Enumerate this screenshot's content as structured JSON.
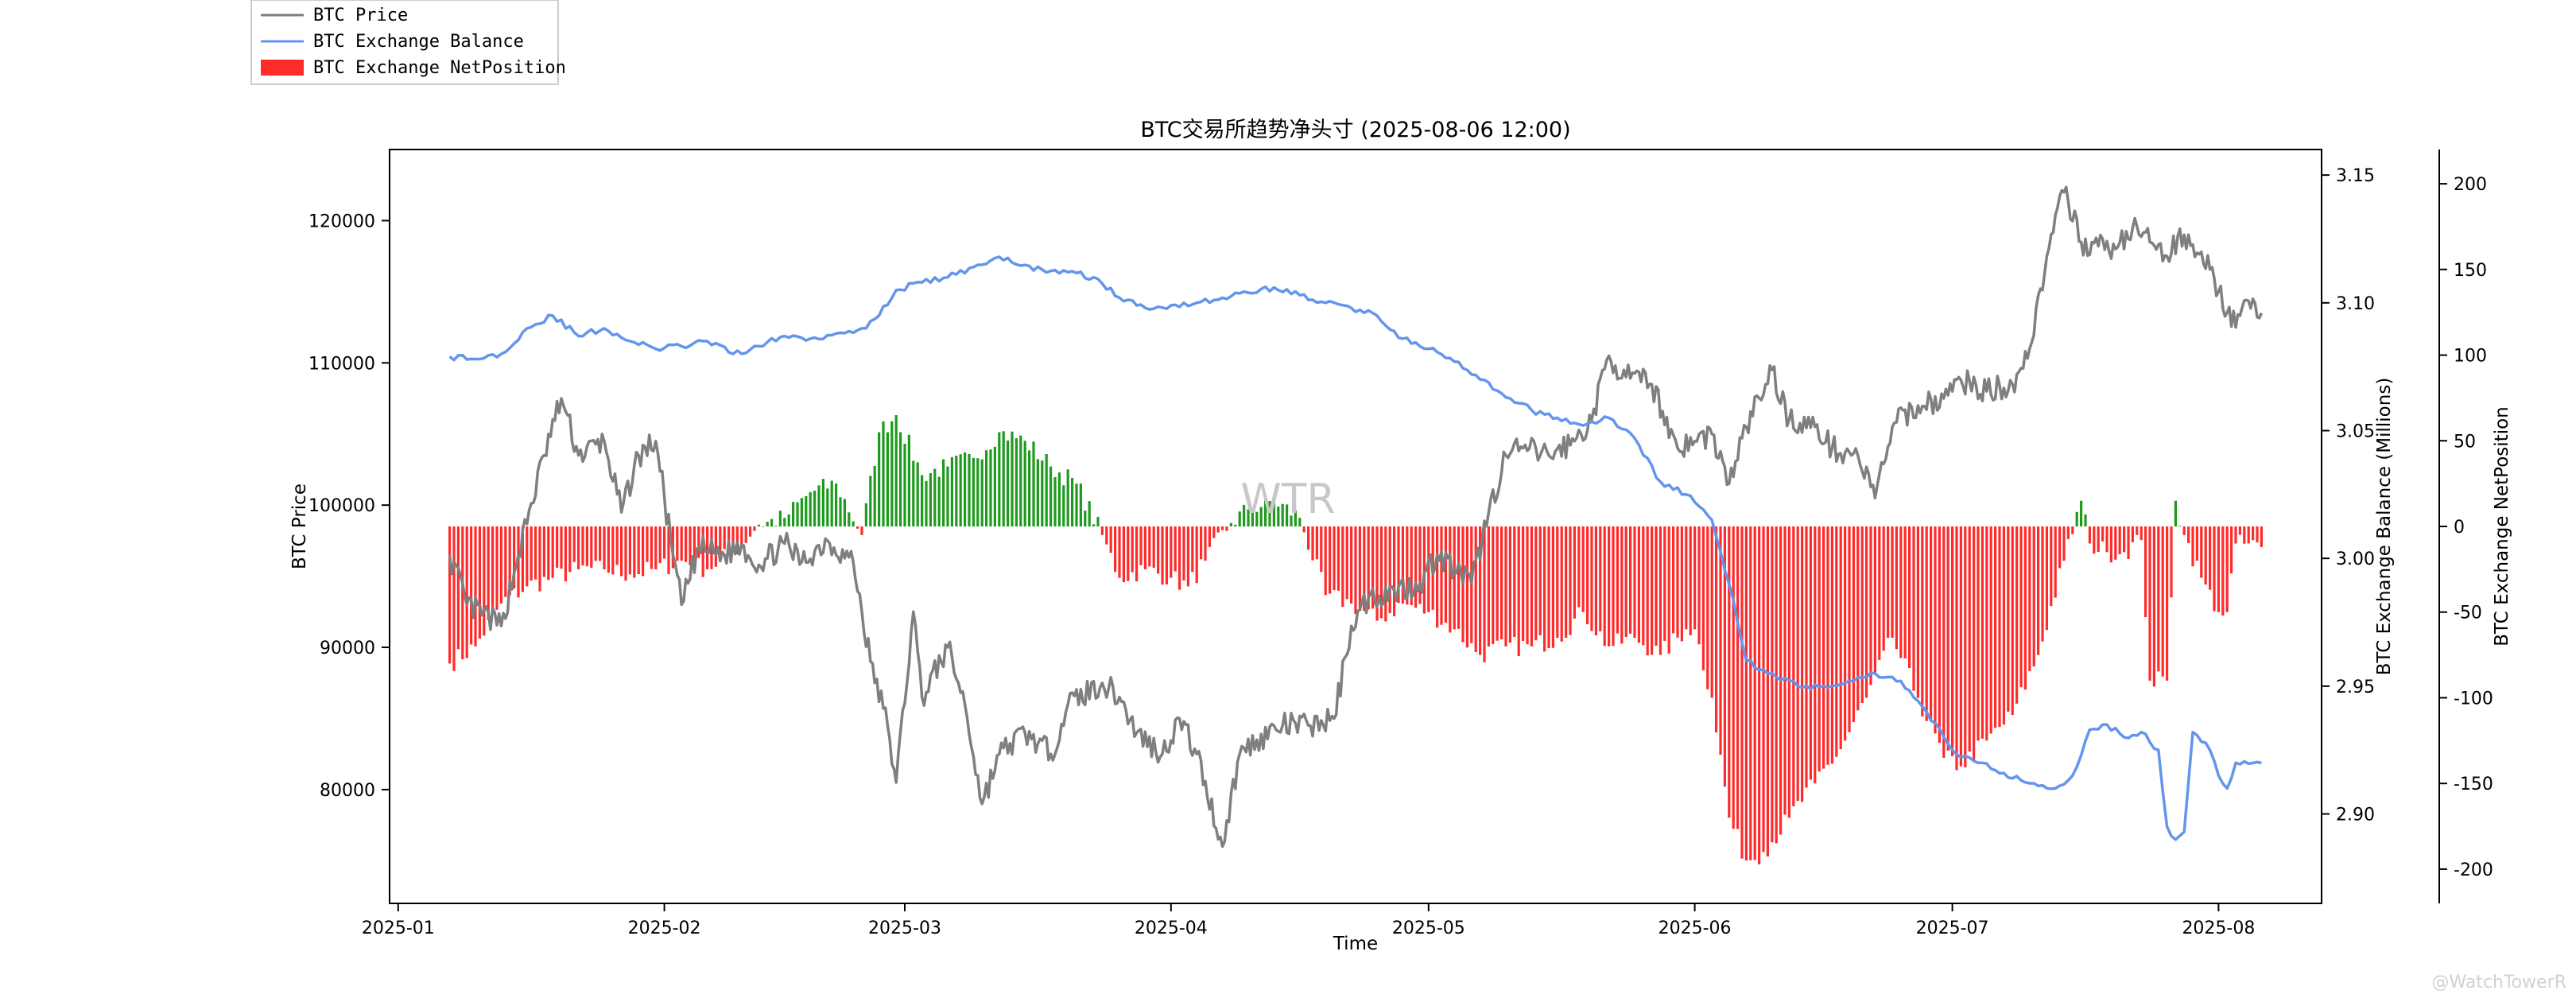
{
  "chart_data": {
    "type": "line",
    "title": "BTC交易所趋势净头寸 (2025-08-06 12:00)",
    "xlabel": "Time",
    "x_ticks": [
      "2025-01",
      "2025-02",
      "2025-03",
      "2025-04",
      "2025-05",
      "2025-06",
      "2025-07",
      "2025-08"
    ],
    "x_range": [
      "2024-12-31",
      "2025-08-13"
    ],
    "axes": {
      "price": {
        "label": "BTC Price",
        "side": "left",
        "range": [
          72000,
          125000
        ],
        "ticks": [
          80000,
          90000,
          100000,
          110000,
          120000
        ]
      },
      "balance": {
        "label": "BTC Exchange Balance (Millions)",
        "side": "right",
        "range": [
          2.865,
          3.16
        ],
        "ticks": [
          "2.90",
          "2.95",
          "3.00",
          "3.05",
          "3.10",
          "3.15"
        ]
      },
      "netposition": {
        "label": "BTC Exchange NetPosition",
        "side": "right-outer",
        "range": [
          -220,
          220
        ],
        "ticks": [
          -200,
          -150,
          -100,
          -50,
          0,
          50,
          100,
          150,
          200
        ]
      }
    },
    "legend": {
      "placement": "top-left",
      "entries": [
        {
          "name": "BTC Price",
          "kind": "line",
          "color": "#7f7f7f"
        },
        {
          "name": "BTC Exchange Balance",
          "kind": "line",
          "color": "#6495ed"
        },
        {
          "name": "BTC Exchange NetPosition",
          "kind": "bar",
          "color": "#ff2a2a"
        }
      ]
    },
    "colors": {
      "price": "#7f7f7f",
      "balance": "#6495ed",
      "positive": "#1e9a1e",
      "negative": "#ff2a2a"
    },
    "series": [
      {
        "name": "BTC Price",
        "axis": "price",
        "points": [
          [
            "2025-01-07",
            96500
          ],
          [
            "2025-01-09",
            93000
          ],
          [
            "2025-01-13",
            91500
          ],
          [
            "2025-01-15",
            96500
          ],
          [
            "2025-01-18",
            103500
          ],
          [
            "2025-01-20",
            107500
          ],
          [
            "2025-01-22",
            103500
          ],
          [
            "2025-01-25",
            104500
          ],
          [
            "2025-01-27",
            99500
          ],
          [
            "2025-01-29",
            103500
          ],
          [
            "2025-01-31",
            104500
          ],
          [
            "2025-02-02",
            96500
          ],
          [
            "2025-02-03",
            93000
          ],
          [
            "2025-02-05",
            97000
          ],
          [
            "2025-02-08",
            96500
          ],
          [
            "2025-02-10",
            97200
          ],
          [
            "2025-02-12",
            95800
          ],
          [
            "2025-02-15",
            97300
          ],
          [
            "2025-02-17",
            96000
          ],
          [
            "2025-02-20",
            97500
          ],
          [
            "2025-02-23",
            96000
          ],
          [
            "2025-02-25",
            89000
          ],
          [
            "2025-02-27",
            84500
          ],
          [
            "2025-02-28",
            80500
          ],
          [
            "2025-03-02",
            92500
          ],
          [
            "2025-03-03",
            86500
          ],
          [
            "2025-03-06",
            90000
          ],
          [
            "2025-03-08",
            86000
          ],
          [
            "2025-03-10",
            79000
          ],
          [
            "2025-03-12",
            82500
          ],
          [
            "2025-03-15",
            84000
          ],
          [
            "2025-03-18",
            82500
          ],
          [
            "2025-03-20",
            86000
          ],
          [
            "2025-03-24",
            87500
          ],
          [
            "2025-03-26",
            86500
          ],
          [
            "2025-03-28",
            84000
          ],
          [
            "2025-03-31",
            82500
          ],
          [
            "2025-04-02",
            85000
          ],
          [
            "2025-04-04",
            82500
          ],
          [
            "2025-04-07",
            76000
          ],
          [
            "2025-04-09",
            82500
          ],
          [
            "2025-04-11",
            83500
          ],
          [
            "2025-04-14",
            84500
          ],
          [
            "2025-04-17",
            84500
          ],
          [
            "2025-04-20",
            85000
          ],
          [
            "2025-04-22",
            91500
          ],
          [
            "2025-04-24",
            93500
          ],
          [
            "2025-04-27",
            94000
          ],
          [
            "2025-04-30",
            94500
          ],
          [
            "2025-05-02",
            96500
          ],
          [
            "2025-05-04",
            95500
          ],
          [
            "2025-05-06",
            94500
          ],
          [
            "2025-05-08",
            99500
          ],
          [
            "2025-05-10",
            103500
          ],
          [
            "2025-05-12",
            104000
          ],
          [
            "2025-05-15",
            103500
          ],
          [
            "2025-05-18",
            104500
          ],
          [
            "2025-05-20",
            106000
          ],
          [
            "2025-05-22",
            110500
          ],
          [
            "2025-05-24",
            109000
          ],
          [
            "2025-05-27",
            108500
          ],
          [
            "2025-05-30",
            104000
          ],
          [
            "2025-06-01",
            104500
          ],
          [
            "2025-06-03",
            105000
          ],
          [
            "2025-06-05",
            101500
          ],
          [
            "2025-06-07",
            105500
          ],
          [
            "2025-06-10",
            109500
          ],
          [
            "2025-06-12",
            106000
          ],
          [
            "2025-06-15",
            105500
          ],
          [
            "2025-06-17",
            104000
          ],
          [
            "2025-06-20",
            103500
          ],
          [
            "2025-06-22",
            100500
          ],
          [
            "2025-06-24",
            105500
          ],
          [
            "2025-06-27",
            107000
          ],
          [
            "2025-06-30",
            107500
          ],
          [
            "2025-07-02",
            108800
          ],
          [
            "2025-07-05",
            108000
          ],
          [
            "2025-07-08",
            108500
          ],
          [
            "2025-07-10",
            111000
          ],
          [
            "2025-07-12",
            117500
          ],
          [
            "2025-07-14",
            122000
          ],
          [
            "2025-07-16",
            118500
          ],
          [
            "2025-07-18",
            118200
          ],
          [
            "2025-07-20",
            118000
          ],
          [
            "2025-07-22",
            119500
          ],
          [
            "2025-07-24",
            118500
          ],
          [
            "2025-07-26",
            117500
          ],
          [
            "2025-07-28",
            119000
          ],
          [
            "2025-07-30",
            117800
          ],
          [
            "2025-08-01",
            115000
          ],
          [
            "2025-08-03",
            112500
          ],
          [
            "2025-08-05",
            114500
          ],
          [
            "2025-08-06",
            113500
          ]
        ]
      },
      {
        "name": "BTC Exchange Balance",
        "axis": "balance",
        "points": [
          [
            "2025-01-07",
            3.079
          ],
          [
            "2025-01-10",
            3.078
          ],
          [
            "2025-01-13",
            3.08
          ],
          [
            "2025-01-16",
            3.09
          ],
          [
            "2025-01-19",
            3.095
          ],
          [
            "2025-01-22",
            3.087
          ],
          [
            "2025-01-25",
            3.09
          ],
          [
            "2025-01-28",
            3.085
          ],
          [
            "2025-01-31",
            3.082
          ],
          [
            "2025-02-03",
            3.083
          ],
          [
            "2025-02-06",
            3.085
          ],
          [
            "2025-02-09",
            3.08
          ],
          [
            "2025-02-12",
            3.083
          ],
          [
            "2025-02-15",
            3.087
          ],
          [
            "2025-02-18",
            3.086
          ],
          [
            "2025-02-21",
            3.088
          ],
          [
            "2025-02-24",
            3.09
          ],
          [
            "2025-02-26",
            3.095
          ],
          [
            "2025-02-28",
            3.105
          ],
          [
            "2025-03-03",
            3.108
          ],
          [
            "2025-03-06",
            3.11
          ],
          [
            "2025-03-09",
            3.114
          ],
          [
            "2025-03-12",
            3.118
          ],
          [
            "2025-03-14",
            3.115
          ],
          [
            "2025-03-17",
            3.113
          ],
          [
            "2025-03-20",
            3.112
          ],
          [
            "2025-03-23",
            3.11
          ],
          [
            "2025-03-26",
            3.102
          ],
          [
            "2025-03-29",
            3.098
          ],
          [
            "2025-04-01",
            3.099
          ],
          [
            "2025-04-04",
            3.1
          ],
          [
            "2025-04-07",
            3.102
          ],
          [
            "2025-04-10",
            3.104
          ],
          [
            "2025-04-13",
            3.106
          ],
          [
            "2025-04-16",
            3.103
          ],
          [
            "2025-04-19",
            3.1
          ],
          [
            "2025-04-22",
            3.098
          ],
          [
            "2025-04-25",
            3.095
          ],
          [
            "2025-04-28",
            3.086
          ],
          [
            "2025-05-01",
            3.082
          ],
          [
            "2025-05-04",
            3.077
          ],
          [
            "2025-05-07",
            3.07
          ],
          [
            "2025-05-10",
            3.063
          ],
          [
            "2025-05-13",
            3.058
          ],
          [
            "2025-05-16",
            3.055
          ],
          [
            "2025-05-19",
            3.052
          ],
          [
            "2025-05-22",
            3.055
          ],
          [
            "2025-05-25",
            3.047
          ],
          [
            "2025-05-28",
            3.03
          ],
          [
            "2025-05-31",
            3.025
          ],
          [
            "2025-06-01",
            3.022
          ],
          [
            "2025-06-03",
            3.015
          ],
          [
            "2025-06-05",
            2.99
          ],
          [
            "2025-06-07",
            2.96
          ],
          [
            "2025-06-10",
            2.955
          ],
          [
            "2025-06-13",
            2.95
          ],
          [
            "2025-06-16",
            2.95
          ],
          [
            "2025-06-19",
            2.952
          ],
          [
            "2025-06-22",
            2.955
          ],
          [
            "2025-06-25",
            2.952
          ],
          [
            "2025-06-28",
            2.94
          ],
          [
            "2025-07-01",
            2.925
          ],
          [
            "2025-07-04",
            2.92
          ],
          [
            "2025-07-07",
            2.916
          ],
          [
            "2025-07-10",
            2.912
          ],
          [
            "2025-07-13",
            2.91
          ],
          [
            "2025-07-15",
            2.915
          ],
          [
            "2025-07-17",
            2.933
          ],
          [
            "2025-07-19",
            2.935
          ],
          [
            "2025-07-21",
            2.93
          ],
          [
            "2025-07-23",
            2.932
          ],
          [
            "2025-07-25",
            2.925
          ],
          [
            "2025-07-26",
            2.895
          ],
          [
            "2025-07-27",
            2.89
          ],
          [
            "2025-07-28",
            2.893
          ],
          [
            "2025-07-29",
            2.932
          ],
          [
            "2025-07-31",
            2.925
          ],
          [
            "2025-08-01",
            2.915
          ],
          [
            "2025-08-02",
            2.91
          ],
          [
            "2025-08-03",
            2.92
          ],
          [
            "2025-08-06",
            2.92
          ]
        ]
      },
      {
        "name": "BTC Exchange NetPosition",
        "axis": "netposition",
        "kind": "bar",
        "points": [
          [
            "2025-01-07",
            -80
          ],
          [
            "2025-01-10",
            -70
          ],
          [
            "2025-01-13",
            -45
          ],
          [
            "2025-01-16",
            -35
          ],
          [
            "2025-01-19",
            -30
          ],
          [
            "2025-01-22",
            -25
          ],
          [
            "2025-01-25",
            -25
          ],
          [
            "2025-01-28",
            -28
          ],
          [
            "2025-01-31",
            -25
          ],
          [
            "2025-02-03",
            -20
          ],
          [
            "2025-02-06",
            -25
          ],
          [
            "2025-02-09",
            -15
          ],
          [
            "2025-02-12",
            1
          ],
          [
            "2025-02-15",
            5
          ],
          [
            "2025-02-18",
            20
          ],
          [
            "2025-02-21",
            25
          ],
          [
            "2025-02-24",
            -5
          ],
          [
            "2025-02-26",
            55
          ],
          [
            "2025-02-28",
            65
          ],
          [
            "2025-03-03",
            30
          ],
          [
            "2025-03-06",
            35
          ],
          [
            "2025-03-09",
            40
          ],
          [
            "2025-03-12",
            55
          ],
          [
            "2025-03-15",
            50
          ],
          [
            "2025-03-18",
            35
          ],
          [
            "2025-03-21",
            25
          ],
          [
            "2025-03-24",
            -5
          ],
          [
            "2025-03-26",
            -30
          ],
          [
            "2025-03-29",
            -25
          ],
          [
            "2025-04-01",
            -30
          ],
          [
            "2025-04-03",
            -35
          ],
          [
            "2025-04-05",
            -20
          ],
          [
            "2025-04-08",
            2
          ],
          [
            "2025-04-10",
            10
          ],
          [
            "2025-04-13",
            15
          ],
          [
            "2025-04-16",
            5
          ],
          [
            "2025-04-19",
            -40
          ],
          [
            "2025-04-22",
            -45
          ],
          [
            "2025-04-25",
            -55
          ],
          [
            "2025-04-28",
            -45
          ],
          [
            "2025-05-01",
            -50
          ],
          [
            "2025-05-04",
            -60
          ],
          [
            "2025-05-07",
            -75
          ],
          [
            "2025-05-10",
            -70
          ],
          [
            "2025-05-13",
            -70
          ],
          [
            "2025-05-16",
            -65
          ],
          [
            "2025-05-19",
            -50
          ],
          [
            "2025-05-22",
            -70
          ],
          [
            "2025-05-25",
            -65
          ],
          [
            "2025-05-28",
            -75
          ],
          [
            "2025-05-31",
            -60
          ],
          [
            "2025-06-01",
            -60
          ],
          [
            "2025-06-03",
            -100
          ],
          [
            "2025-06-05",
            -170
          ],
          [
            "2025-06-07",
            -195
          ],
          [
            "2025-06-09",
            -190
          ],
          [
            "2025-06-12",
            -170
          ],
          [
            "2025-06-15",
            -150
          ],
          [
            "2025-06-18",
            -130
          ],
          [
            "2025-06-21",
            -100
          ],
          [
            "2025-06-24",
            -65
          ],
          [
            "2025-06-27",
            -100
          ],
          [
            "2025-06-30",
            -135
          ],
          [
            "2025-07-02",
            -140
          ],
          [
            "2025-07-05",
            -125
          ],
          [
            "2025-07-08",
            -110
          ],
          [
            "2025-07-11",
            -75
          ],
          [
            "2025-07-14",
            -20
          ],
          [
            "2025-07-16",
            15
          ],
          [
            "2025-07-17",
            -10
          ],
          [
            "2025-07-19",
            -15
          ],
          [
            "2025-07-21",
            -15
          ],
          [
            "2025-07-23",
            -8
          ],
          [
            "2025-07-24",
            -90
          ],
          [
            "2025-07-26",
            -90
          ],
          [
            "2025-07-27",
            15
          ],
          [
            "2025-07-28",
            -5
          ],
          [
            "2025-07-30",
            -30
          ],
          [
            "2025-08-01",
            -50
          ],
          [
            "2025-08-02",
            -50
          ],
          [
            "2025-08-03",
            -10
          ],
          [
            "2025-08-06",
            -12
          ]
        ]
      }
    ],
    "watermark": "WTR",
    "credit": "@WatchTowerR"
  }
}
